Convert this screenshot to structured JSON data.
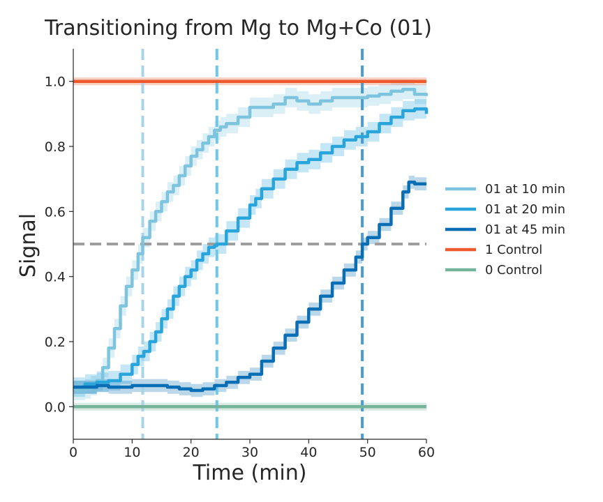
{
  "chart_data": {
    "type": "line",
    "title": "Transitioning from Mg to Mg+Co (01)",
    "xlabel": "Time (min)",
    "ylabel": "Signal",
    "xlim": [
      0,
      60
    ],
    "ylim": [
      -0.1,
      1.1
    ],
    "xticks": [
      "0",
      "10",
      "20",
      "30",
      "40",
      "50",
      "60"
    ],
    "yticks": [
      "0.0",
      "0.2",
      "0.4",
      "0.6",
      "0.8",
      "1.0"
    ],
    "grid": false,
    "legend_position": "right",
    "reference_lines": {
      "horizontal": [
        {
          "y": 0.5,
          "color": "#9e9e9e"
        }
      ],
      "vertical": [
        {
          "x": 11.8,
          "color": "#a6d5e8"
        },
        {
          "x": 24.4,
          "color": "#6ec6e8"
        },
        {
          "x": 49.1,
          "color": "#4a9bd6"
        }
      ]
    },
    "series": [
      {
        "name": "01 at 10 min",
        "color": "#7ec4de",
        "band": 0.03,
        "x": [
          0,
          2,
          3,
          4,
          5,
          6,
          7,
          8,
          9,
          10,
          11,
          11.8,
          13,
          14,
          15,
          16,
          17,
          18,
          19,
          20,
          21,
          22,
          23,
          24,
          25,
          26,
          28,
          30,
          32,
          34,
          36,
          38,
          40,
          42,
          44,
          46,
          48,
          50,
          52,
          54,
          56,
          58,
          60
        ],
        "y": [
          0.05,
          0.055,
          0.065,
          0.08,
          0.12,
          0.18,
          0.24,
          0.31,
          0.37,
          0.42,
          0.47,
          0.52,
          0.57,
          0.6,
          0.63,
          0.66,
          0.68,
          0.71,
          0.74,
          0.77,
          0.79,
          0.81,
          0.83,
          0.85,
          0.86,
          0.87,
          0.89,
          0.92,
          0.92,
          0.93,
          0.95,
          0.94,
          0.93,
          0.94,
          0.95,
          0.95,
          0.95,
          0.955,
          0.96,
          0.97,
          0.975,
          0.96,
          0.955
        ]
      },
      {
        "name": "01 at 20 min",
        "color": "#2aa5dc",
        "band": 0.03,
        "x": [
          0,
          2,
          4,
          6,
          8,
          10,
          11,
          12,
          13,
          14,
          15,
          16,
          17,
          18,
          19,
          20,
          21,
          22,
          23,
          24,
          24.4,
          26,
          28,
          30,
          31,
          32,
          34,
          36,
          38,
          40,
          42,
          44,
          46,
          48,
          50,
          52,
          54,
          56,
          58,
          60
        ],
        "y": [
          0.06,
          0.07,
          0.075,
          0.08,
          0.1,
          0.13,
          0.155,
          0.17,
          0.2,
          0.23,
          0.27,
          0.3,
          0.34,
          0.37,
          0.4,
          0.42,
          0.45,
          0.47,
          0.49,
          0.495,
          0.5,
          0.54,
          0.58,
          0.62,
          0.64,
          0.67,
          0.7,
          0.73,
          0.75,
          0.76,
          0.78,
          0.8,
          0.82,
          0.83,
          0.845,
          0.87,
          0.89,
          0.91,
          0.915,
          0.9
        ]
      },
      {
        "name": "01 at 45 min",
        "color": "#0a6eb4",
        "band": 0.02,
        "x": [
          0,
          2,
          4,
          6,
          8,
          10,
          12,
          14,
          16,
          18,
          20,
          22,
          24,
          26,
          28,
          30,
          32,
          34,
          36,
          38,
          40,
          42,
          44,
          46,
          48,
          49.1,
          50,
          52,
          54,
          56,
          57,
          58,
          60
        ],
        "y": [
          0.06,
          0.06,
          0.065,
          0.06,
          0.06,
          0.065,
          0.065,
          0.065,
          0.06,
          0.055,
          0.05,
          0.055,
          0.065,
          0.075,
          0.09,
          0.1,
          0.14,
          0.18,
          0.22,
          0.26,
          0.3,
          0.34,
          0.38,
          0.42,
          0.46,
          0.5,
          0.52,
          0.56,
          0.61,
          0.66,
          0.69,
          0.685,
          0.685
        ]
      },
      {
        "name": "1 Control",
        "color": "#ee5a2e",
        "band": 0.012,
        "x": [
          0,
          60
        ],
        "y": [
          1.0,
          1.0
        ]
      },
      {
        "name": "0 Control",
        "color": "#74b49a",
        "band": 0.012,
        "x": [
          0,
          60
        ],
        "y": [
          0.0,
          0.0
        ]
      }
    ]
  }
}
